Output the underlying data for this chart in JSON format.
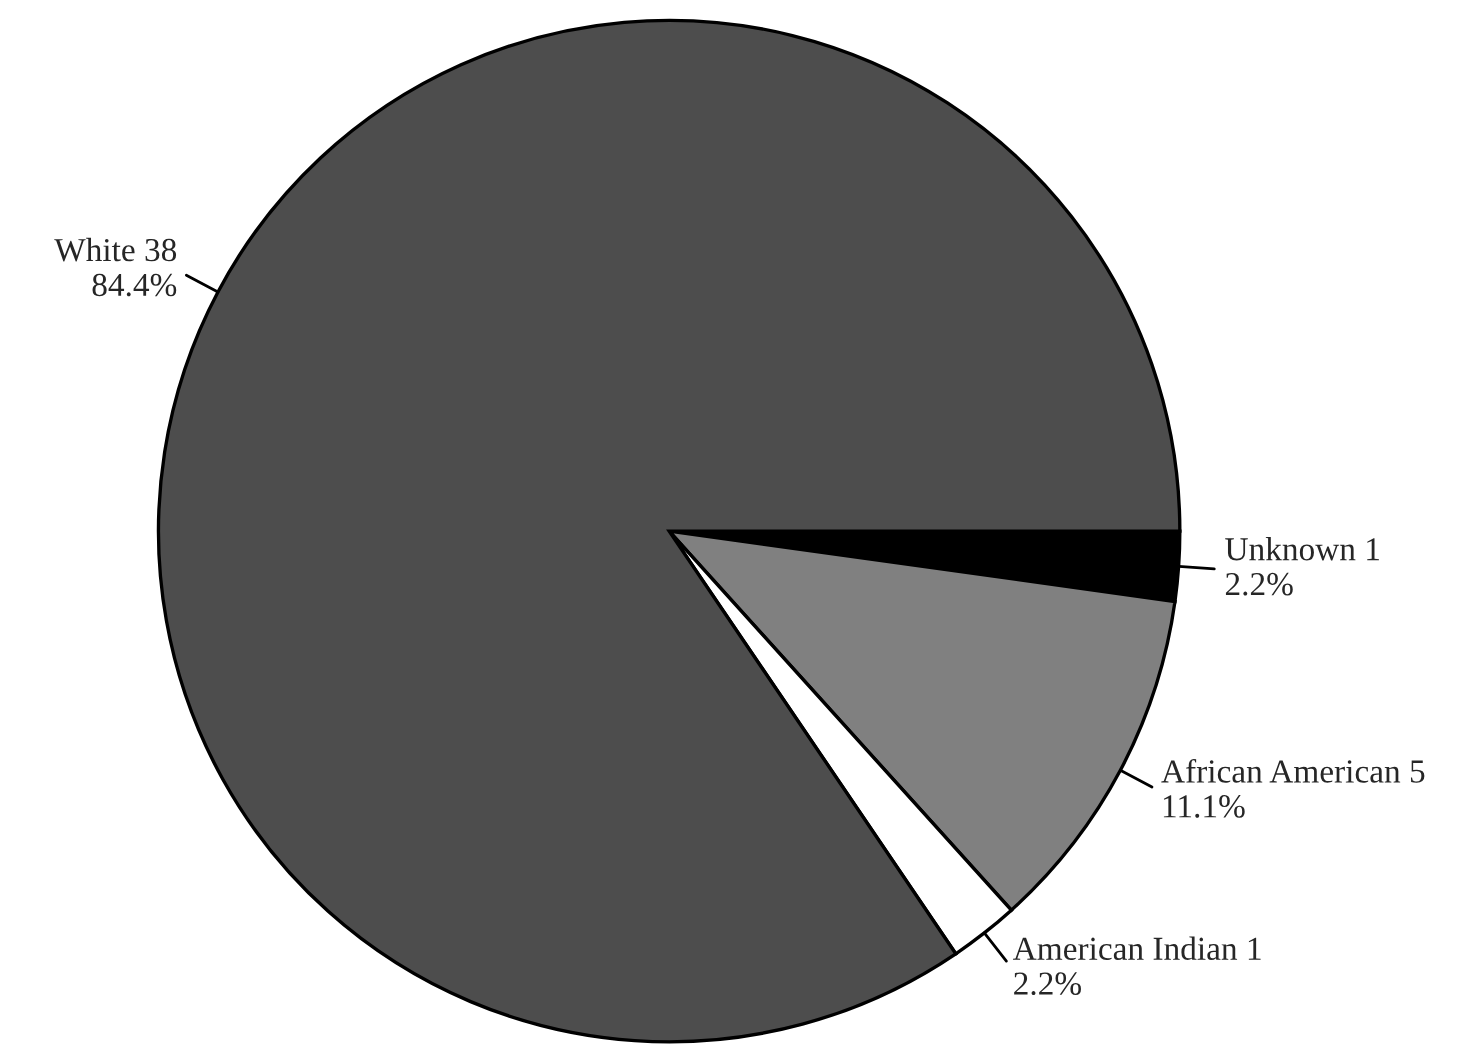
{
  "chart_data": {
    "type": "pie",
    "categories": [
      "Unknown 1",
      "African American 5",
      "American Indian 1",
      "White 38"
    ],
    "values": [
      2.2,
      11.1,
      2.2,
      84.4
    ],
    "value_labels": [
      "2.2%",
      "11.1%",
      "2.2%",
      "84.4%"
    ],
    "colors": [
      "#000000",
      "#808080",
      "#ffffff",
      "#4d4d4d"
    ]
  }
}
